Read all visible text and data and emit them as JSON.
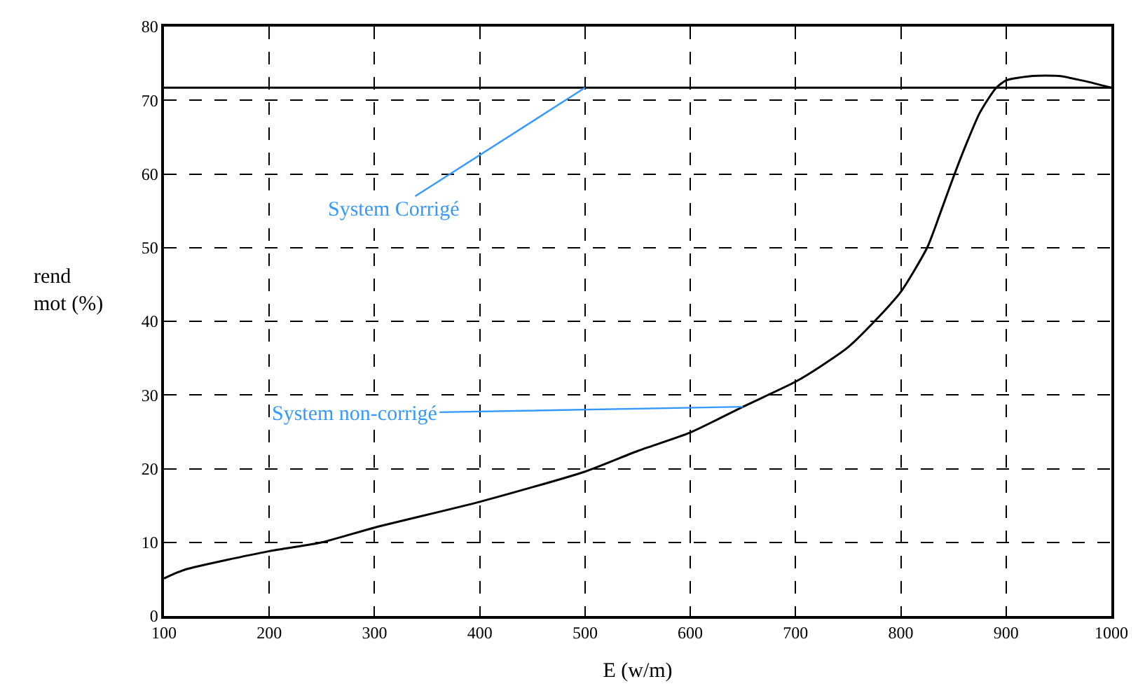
{
  "chart_data": {
    "type": "line",
    "xlabel": "E (w/m)",
    "ylabel": "rend\nmot (%)",
    "xlim": [
      100,
      1000
    ],
    "ylim": [
      0,
      80
    ],
    "xticks": [
      100,
      200,
      300,
      400,
      500,
      600,
      700,
      800,
      900,
      1000
    ],
    "yticks": [
      0,
      10,
      20,
      30,
      40,
      50,
      60,
      70,
      80
    ],
    "grid": true,
    "marker": "none",
    "line_style": "solid",
    "series": [
      {
        "color": "#000000",
        "x": [
          100,
          120,
          200,
          250,
          300,
          400,
          500,
          550,
          600,
          650,
          700,
          725,
          750,
          775,
          800,
          825,
          837,
          850,
          862,
          875,
          890,
          900,
          925,
          950,
          975,
          1000
        ],
        "values": [
          5.1,
          6.3,
          8.8,
          10,
          12,
          15.5,
          19.6,
          22.4,
          24.9,
          28.4,
          31.8,
          34,
          36.5,
          40,
          44,
          50,
          54.5,
          59.6,
          64,
          68.3,
          71.6,
          72.7,
          73.3,
          73.3,
          72.6,
          71.7
        ]
      }
    ],
    "ref_lines": [
      {
        "axis": "y",
        "value": 71.7,
        "color": "#000000",
        "line_style": "solid"
      }
    ],
    "annotations": [
      {
        "text": "System Corrigé",
        "x": 500,
        "y": 71.7
      },
      {
        "text": "System non-corrigé",
        "x": 650,
        "y": 28.4
      }
    ]
  }
}
